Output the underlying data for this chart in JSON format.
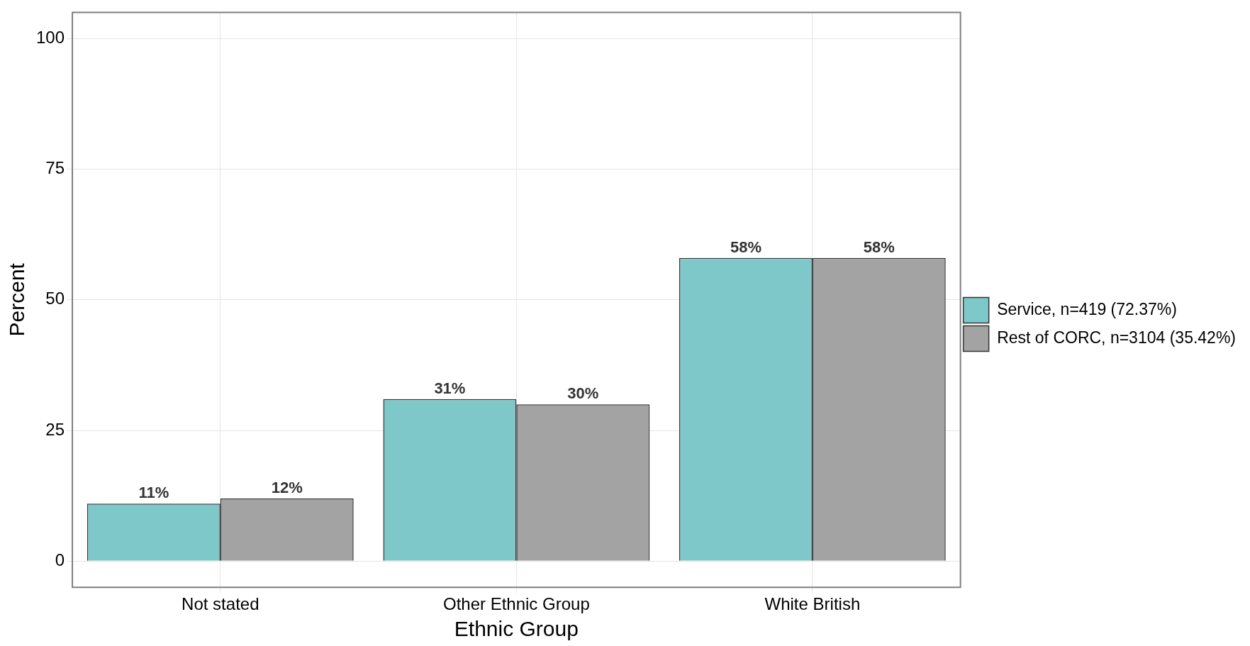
{
  "chart_data": {
    "type": "bar",
    "xlabel": "Ethnic Group",
    "ylabel": "Percent",
    "categories": [
      "Not stated",
      "Other Ethnic Group",
      "White British"
    ],
    "series": [
      {
        "name": "Service, n=419 (72.37%)",
        "color": "#7ec8c9",
        "values": [
          11,
          31,
          58
        ],
        "value_labels": [
          "11%",
          "31%",
          "58%"
        ]
      },
      {
        "name": "Rest of CORC, n=3104 (35.42%)",
        "color": "#a3a3a3",
        "values": [
          12,
          30,
          58
        ],
        "value_labels": [
          "12%",
          "30%",
          "58%"
        ]
      }
    ],
    "ylim": [
      -5,
      105
    ],
    "yticks": [
      0,
      25,
      50,
      75,
      100
    ],
    "grid": true,
    "legend": "right"
  }
}
